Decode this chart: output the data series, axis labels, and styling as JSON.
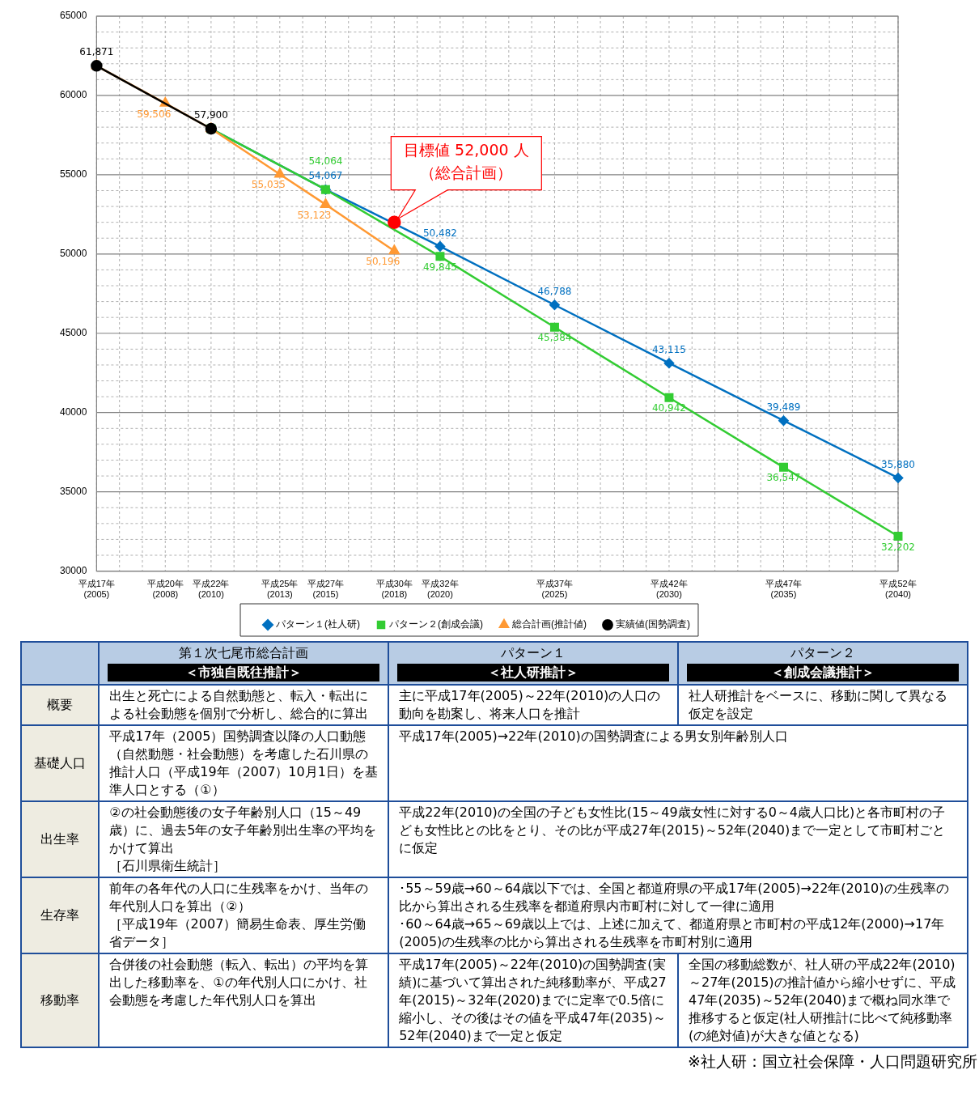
{
  "chart_data": {
    "type": "line",
    "categories": [
      "平成17年(2005)",
      null,
      null,
      "平成20年(2008)",
      null,
      "平成22年(2010)",
      null,
      null,
      "平成25年(2013)",
      null,
      "平成27年(2015)",
      null,
      null,
      "平成30年(2018)",
      null,
      "平成32年(2020)",
      null,
      null,
      null,
      null,
      "平成37年(2025)",
      null,
      null,
      null,
      null,
      "平成42年(2030)",
      null,
      null,
      null,
      null,
      "平成47年(2035)",
      null,
      null,
      null,
      null,
      "平成52年(2040)"
    ],
    "ylim": [
      30000,
      65000
    ],
    "yticks": [
      30000,
      {
        "value": 31000,
        "label": null
      },
      {
        "value": 32000,
        "label": null
      },
      {
        "value": 33000,
        "label": null
      },
      {
        "value": 34000,
        "label": null
      },
      35000,
      {
        "value": 36000,
        "label": null
      },
      {
        "value": 37000,
        "label": null
      },
      {
        "value": 38000,
        "label": null
      },
      {
        "value": 39000,
        "label": null
      },
      40000,
      {
        "value": 41000,
        "label": null
      },
      {
        "value": 42000,
        "label": null
      },
      {
        "value": 43000,
        "label": null
      },
      {
        "value": 44000,
        "label": null
      },
      45000,
      {
        "value": 46000,
        "label": null
      },
      {
        "value": 47000,
        "label": null
      },
      {
        "value": 48000,
        "label": null
      },
      {
        "value": 49000,
        "label": null
      },
      50000,
      {
        "value": 51000,
        "label": null
      },
      {
        "value": 52000,
        "label": null
      },
      {
        "value": 53000,
        "label": null
      },
      {
        "value": 54000,
        "label": null
      },
      55000,
      {
        "value": 56000,
        "label": null
      },
      {
        "value": 57000,
        "label": null
      },
      {
        "value": 58000,
        "label": null
      },
      {
        "value": 59000,
        "label": null
      },
      60000,
      {
        "value": 61000,
        "label": null
      },
      {
        "value": 62000,
        "label": null
      },
      {
        "value": 63000,
        "label": null
      },
      {
        "value": 64000,
        "label": null
      },
      65000
    ],
    "grid": true,
    "legend": "bottom",
    "line_style": "solid",
    "series": [
      {
        "name": "パターン１(社人研)",
        "color": "#0070c0",
        "marker": "diamond",
        "values": [
          null,
          null,
          null,
          null,
          null,
          57900,
          null,
          null,
          null,
          null,
          54067,
          null,
          null,
          null,
          null,
          50482,
          null,
          null,
          null,
          null,
          46788,
          null,
          null,
          null,
          null,
          43115,
          null,
          null,
          null,
          null,
          39489,
          null,
          null,
          null,
          null,
          35880
        ],
        "value_labels": [
          null,
          null,
          null,
          null,
          null,
          null,
          null,
          null,
          null,
          null,
          "54,067",
          null,
          null,
          null,
          null,
          "50,482",
          null,
          null,
          null,
          null,
          "46,788",
          null,
          null,
          null,
          null,
          "43,115",
          null,
          null,
          null,
          null,
          "39,489",
          null,
          null,
          null,
          null,
          "35,880"
        ]
      },
      {
        "name": "パターン２(創成会議)",
        "color": "#33cc33",
        "marker": "square",
        "values": [
          null,
          null,
          null,
          null,
          null,
          57900,
          null,
          null,
          null,
          null,
          54064,
          null,
          null,
          null,
          null,
          49845,
          null,
          null,
          null,
          null,
          45384,
          null,
          null,
          null,
          null,
          40942,
          null,
          null,
          null,
          null,
          36547,
          null,
          null,
          null,
          null,
          32202
        ],
        "value_labels": [
          null,
          null,
          null,
          null,
          null,
          null,
          null,
          null,
          null,
          null,
          "54,064",
          null,
          null,
          null,
          null,
          "49,845",
          null,
          null,
          null,
          null,
          "45,384",
          null,
          null,
          null,
          null,
          "40,942",
          null,
          null,
          null,
          null,
          "36,547",
          null,
          null,
          null,
          null,
          "32,202"
        ]
      },
      {
        "name": "総合計画(推計値)",
        "color": "#ff9933",
        "marker": "triangle",
        "values": [
          61871,
          null,
          null,
          59506,
          null,
          57900,
          null,
          null,
          55035,
          null,
          53123,
          null,
          null,
          50196,
          null,
          null,
          null,
          null,
          null,
          null,
          null,
          null,
          null,
          null,
          null,
          null,
          null,
          null,
          null,
          null,
          null,
          null,
          null,
          null,
          null,
          null
        ],
        "value_labels": [
          null,
          null,
          null,
          "59,506",
          null,
          null,
          null,
          null,
          "55,035",
          null,
          "53,123",
          null,
          null,
          "50,196",
          null,
          null,
          null,
          null,
          null,
          null,
          null,
          null,
          null,
          null,
          null,
          null,
          null,
          null,
          null,
          null,
          null,
          null,
          null,
          null,
          null,
          null
        ]
      },
      {
        "name": "実績値(国勢調査)",
        "color": "#000000",
        "marker": "circle",
        "values": [
          61871,
          null,
          null,
          null,
          null,
          57900,
          null,
          null,
          null,
          null,
          null,
          null,
          null,
          null,
          null,
          null,
          null,
          null,
          null,
          null,
          null,
          null,
          null,
          null,
          null,
          null,
          null,
          null,
          null,
          null,
          null,
          null,
          null,
          null,
          null,
          null
        ],
        "value_labels": [
          "61,871",
          null,
          null,
          null,
          null,
          "57,900",
          null,
          null,
          null,
          null,
          null,
          null,
          null,
          null,
          null,
          null,
          null,
          null,
          null,
          null,
          null,
          null,
          null,
          null,
          null,
          null,
          null,
          null,
          null,
          null,
          null,
          null,
          null,
          null,
          null,
          null
        ]
      },
      {
        "type": "scatter",
        "color": "#ff0000",
        "marker": "circle",
        "values": [
          null,
          null,
          null,
          null,
          null,
          null,
          null,
          null,
          null,
          null,
          null,
          null,
          null,
          52000,
          null,
          null,
          null,
          null,
          null,
          null,
          null,
          null,
          null,
          null,
          null,
          null,
          null,
          null,
          null,
          null,
          null,
          null,
          null,
          null,
          null,
          null
        ]
      }
    ],
    "annotations": [
      {
        "text": "目標値 52,000 人（総合計画）",
        "x": "平成30年(2018)",
        "y": 52000
      },
      "第１次七尾市総合計画＜市独自既往推計＞",
      "パターン１＜社人研推計＞",
      "パターン２＜創成会議推計＞",
      "概要",
      "出生と死亡による自然動態と、転入・転出による社会動態を個別で分析し、総合的に算出",
      "主に平成17年(2005)～22年(2010)の人口の動向を勘案し、将来人口を推計",
      "社人研推計をベースに、移動に関して異なる仮定を設定",
      "基礎人口",
      "平成17年（2005）国勢調査以降の人口動態（自然動態・社会動態）を考慮した石川県の推計人口（平成19年（2007）10月1日）を基準人口とする（①）",
      "平成17年(2005)→22年(2010)の国勢調査による男女別年齢別人口",
      "出生率",
      "②の社会動態後の女子年齢別人口（15～49歳）に、過去5年の女子年齢別出生率の平均をかけて算出［石川県衛生統計］",
      "平成22年(2010)の全国の子ども女性比(15～49歳女性に対する0～4歳人口比)と各市町村の子ども女性比との比をとり、その比が平成27年(2015)～52年(2040)まで一定として市町村ごとに仮定",
      "生存率",
      "前年の各年代の人口に生残率をかけ、当年の年代別人口を算出（②）［平成19年（2007）簡易生命表、厚生労働省データ］",
      "･55～59歳→60～64歳以下では、全国と都道府県の平成17年(2005)→22年(2010)の生残率の比から算出される生残率を都道府県内市町村に対して一律に適用･60～64歳→65～69歳以上では、上述に加えて、都道府県と市町村の平成12年(2000)→17年(2005)の生残率の比から算出される生残率を市町村別に適用",
      "移動率",
      "合併後の社会動態（転入、転出）の平均を算出した移動率を、①の年代別人口にかけ、社会動態を考慮した年代別人口を算出",
      "平成17年(2005)～22年(2010)の国勢調査(実績)に基づいて算出された純移動率が、平成27年(2015)～32年(2020)までに定率で0.5倍に縮小し、その後はその値を平成47年(2035)～52年(2040)まで一定と仮定",
      "全国の移動総数が、社人研の平成22年(2010)～27年(2015)の推計値から縮小せずに、平成47年(2035)～52年(2040)まで概ね同水準で推移すると仮定(社人研推計に比べて純移動率(の絶対値)が大きな値となる)",
      "※社人研：国立社会保障・人口問題研究所"
    ]
  }
}
